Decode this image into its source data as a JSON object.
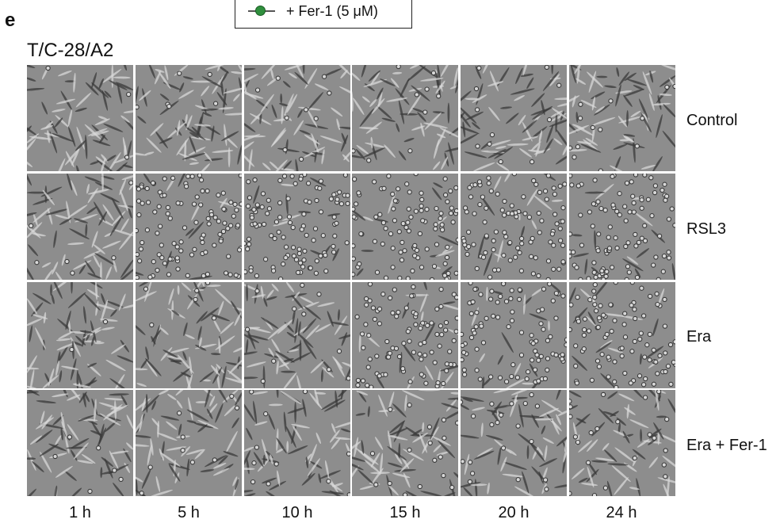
{
  "panel_letter": "e",
  "legend": {
    "label": "+ Fer-1 (5 μM)",
    "marker_color": "#2f8f3d"
  },
  "cell_line": "T/C-28/A2",
  "rows": [
    {
      "label": "Control",
      "dead_fraction": 0.05
    },
    {
      "label": "RSL3",
      "dead_fraction": 0.85
    },
    {
      "label": "Era",
      "dead_fraction": 0.3
    },
    {
      "label": "Era + Fer-1",
      "dead_fraction": 0.12
    }
  ],
  "columns": [
    "1 h",
    "5 h",
    "10 h",
    "15 h",
    "20 h",
    "24 h"
  ],
  "dead_cell_by_row_and_time": [
    [
      0.03,
      0.05,
      0.08,
      0.08,
      0.1,
      0.12
    ],
    [
      0.05,
      0.95,
      0.95,
      0.9,
      0.9,
      0.9
    ],
    [
      0.02,
      0.05,
      0.1,
      0.85,
      0.85,
      0.85
    ],
    [
      0.05,
      0.08,
      0.1,
      0.15,
      0.18,
      0.2
    ]
  ],
  "colors": {
    "tile_background": "#8d8d8d",
    "cell_dark": "#3a3a3a",
    "cell_light": "#d8d8d8"
  }
}
